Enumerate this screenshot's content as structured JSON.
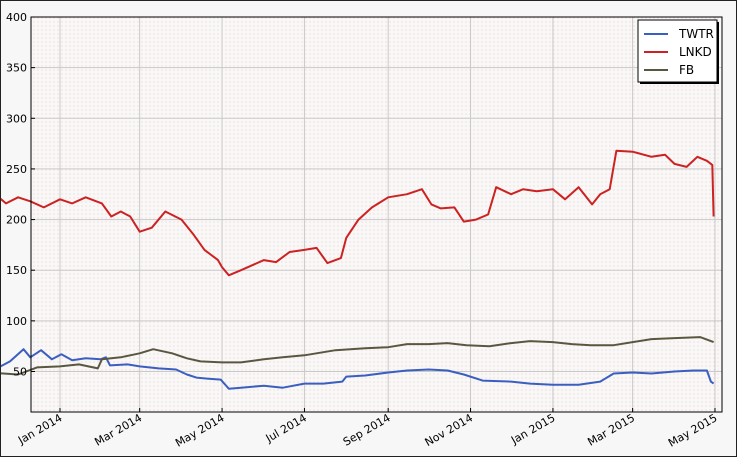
{
  "chart_data": {
    "type": "line",
    "title": "",
    "xlabel": "",
    "ylabel": "",
    "ylim": [
      10,
      400
    ],
    "xlim": [
      "2013-12-01",
      "2015-05-01"
    ],
    "yticks": [
      50,
      100,
      150,
      200,
      250,
      300,
      350,
      400
    ],
    "xticks": [
      {
        "date": "2014-01-01",
        "label": "Jan 2014"
      },
      {
        "date": "2014-03-01",
        "label": "Mar 2014"
      },
      {
        "date": "2014-05-01",
        "label": "May 2014"
      },
      {
        "date": "2014-07-01",
        "label": "Jul 2014"
      },
      {
        "date": "2014-09-01",
        "label": "Sep 2014"
      },
      {
        "date": "2014-11-01",
        "label": "Nov 2014"
      },
      {
        "date": "2015-01-01",
        "label": "Jan 2015"
      },
      {
        "date": "2015-03-01",
        "label": "Mar 2015"
      },
      {
        "date": "2015-05-01",
        "label": "May 2015"
      }
    ],
    "grid": true,
    "legend_position": "top-right",
    "series": [
      {
        "name": "TWTR",
        "color": "#3b5fc0",
        "points": [
          [
            "2013-11-07",
            58
          ],
          [
            "2013-11-15",
            53
          ],
          [
            "2013-11-25",
            60
          ],
          [
            "2013-12-05",
            72
          ],
          [
            "2013-12-10",
            64
          ],
          [
            "2013-12-18",
            71
          ],
          [
            "2013-12-26",
            62
          ],
          [
            "2014-01-02",
            67
          ],
          [
            "2014-01-10",
            61
          ],
          [
            "2014-01-20",
            63
          ],
          [
            "2014-01-31",
            62
          ],
          [
            "2014-02-04",
            64
          ],
          [
            "2014-02-07",
            56
          ],
          [
            "2014-02-20",
            57
          ],
          [
            "2014-03-01",
            55
          ],
          [
            "2014-03-15",
            53
          ],
          [
            "2014-03-28",
            52
          ],
          [
            "2014-04-05",
            47
          ],
          [
            "2014-04-12",
            44
          ],
          [
            "2014-04-20",
            43
          ],
          [
            "2014-04-30",
            42
          ],
          [
            "2014-05-06",
            33
          ],
          [
            "2014-05-15",
            34
          ],
          [
            "2014-06-01",
            36
          ],
          [
            "2014-06-15",
            34
          ],
          [
            "2014-07-01",
            38
          ],
          [
            "2014-07-15",
            38
          ],
          [
            "2014-07-29",
            40
          ],
          [
            "2014-08-01",
            45
          ],
          [
            "2014-08-15",
            46
          ],
          [
            "2014-09-01",
            49
          ],
          [
            "2014-09-15",
            51
          ],
          [
            "2014-10-01",
            52
          ],
          [
            "2014-10-15",
            51
          ],
          [
            "2014-10-27",
            47
          ],
          [
            "2014-11-10",
            41
          ],
          [
            "2014-12-01",
            40
          ],
          [
            "2014-12-15",
            38
          ],
          [
            "2015-01-01",
            37
          ],
          [
            "2015-01-20",
            37
          ],
          [
            "2015-02-05",
            40
          ],
          [
            "2015-02-15",
            48
          ],
          [
            "2015-03-01",
            49
          ],
          [
            "2015-03-15",
            48
          ],
          [
            "2015-04-01",
            50
          ],
          [
            "2015-04-15",
            51
          ],
          [
            "2015-04-25",
            51
          ],
          [
            "2015-04-28",
            40
          ],
          [
            "2015-04-30",
            38
          ]
        ]
      },
      {
        "name": "LNKD",
        "color": "#cc2222",
        "points": [
          [
            "2013-11-07",
            229
          ],
          [
            "2013-11-15",
            224
          ],
          [
            "2013-11-22",
            216
          ],
          [
            "2013-12-01",
            222
          ],
          [
            "2013-12-10",
            218
          ],
          [
            "2013-12-20",
            212
          ],
          [
            "2014-01-01",
            220
          ],
          [
            "2014-01-10",
            216
          ],
          [
            "2014-01-20",
            222
          ],
          [
            "2014-02-01",
            216
          ],
          [
            "2014-02-08",
            203
          ],
          [
            "2014-02-15",
            208
          ],
          [
            "2014-02-22",
            203
          ],
          [
            "2014-03-01",
            188
          ],
          [
            "2014-03-10",
            192
          ],
          [
            "2014-03-20",
            208
          ],
          [
            "2014-04-01",
            200
          ],
          [
            "2014-04-10",
            185
          ],
          [
            "2014-04-18",
            170
          ],
          [
            "2014-04-28",
            160
          ],
          [
            "2014-05-01",
            153
          ],
          [
            "2014-05-06",
            145
          ],
          [
            "2014-05-15",
            150
          ],
          [
            "2014-06-01",
            160
          ],
          [
            "2014-06-10",
            158
          ],
          [
            "2014-06-20",
            168
          ],
          [
            "2014-07-01",
            170
          ],
          [
            "2014-07-10",
            172
          ],
          [
            "2014-07-18",
            157
          ],
          [
            "2014-07-28",
            162
          ],
          [
            "2014-08-01",
            182
          ],
          [
            "2014-08-10",
            200
          ],
          [
            "2014-08-20",
            212
          ],
          [
            "2014-09-01",
            222
          ],
          [
            "2014-09-15",
            225
          ],
          [
            "2014-09-26",
            230
          ],
          [
            "2014-10-03",
            215
          ],
          [
            "2014-10-10",
            211
          ],
          [
            "2014-10-20",
            212
          ],
          [
            "2014-10-27",
            198
          ],
          [
            "2014-11-05",
            200
          ],
          [
            "2014-11-14",
            205
          ],
          [
            "2014-11-20",
            232
          ],
          [
            "2014-12-01",
            225
          ],
          [
            "2014-12-10",
            230
          ],
          [
            "2014-12-20",
            228
          ],
          [
            "2015-01-01",
            230
          ],
          [
            "2015-01-10",
            220
          ],
          [
            "2015-01-20",
            232
          ],
          [
            "2015-01-30",
            215
          ],
          [
            "2015-02-05",
            225
          ],
          [
            "2015-02-12",
            230
          ],
          [
            "2015-02-17",
            268
          ],
          [
            "2015-03-01",
            267
          ],
          [
            "2015-03-15",
            262
          ],
          [
            "2015-03-25",
            264
          ],
          [
            "2015-04-01",
            255
          ],
          [
            "2015-04-10",
            252
          ],
          [
            "2015-04-18",
            262
          ],
          [
            "2015-04-25",
            258
          ],
          [
            "2015-04-29",
            254
          ],
          [
            "2015-04-30",
            203
          ]
        ]
      },
      {
        "name": "FB",
        "color": "#5a5740",
        "points": [
          [
            "2013-11-07",
            49
          ],
          [
            "2013-11-20",
            48
          ],
          [
            "2013-12-01",
            47
          ],
          [
            "2013-12-15",
            54
          ],
          [
            "2014-01-01",
            55
          ],
          [
            "2014-01-15",
            57
          ],
          [
            "2014-01-29",
            53
          ],
          [
            "2014-02-01",
            62
          ],
          [
            "2014-02-15",
            64
          ],
          [
            "2014-03-01",
            68
          ],
          [
            "2014-03-11",
            72
          ],
          [
            "2014-03-25",
            68
          ],
          [
            "2014-04-05",
            63
          ],
          [
            "2014-04-15",
            60
          ],
          [
            "2014-05-01",
            59
          ],
          [
            "2014-05-15",
            59
          ],
          [
            "2014-06-01",
            62
          ],
          [
            "2014-06-15",
            64
          ],
          [
            "2014-07-01",
            66
          ],
          [
            "2014-07-24",
            71
          ],
          [
            "2014-08-15",
            73
          ],
          [
            "2014-09-01",
            74
          ],
          [
            "2014-09-15",
            77
          ],
          [
            "2014-10-01",
            77
          ],
          [
            "2014-10-15",
            78
          ],
          [
            "2014-10-29",
            76
          ],
          [
            "2014-11-15",
            75
          ],
          [
            "2014-12-01",
            78
          ],
          [
            "2014-12-15",
            80
          ],
          [
            "2015-01-01",
            79
          ],
          [
            "2015-01-15",
            77
          ],
          [
            "2015-01-29",
            76
          ],
          [
            "2015-02-15",
            76
          ],
          [
            "2015-03-01",
            79
          ],
          [
            "2015-03-15",
            82
          ],
          [
            "2015-04-01",
            83
          ],
          [
            "2015-04-20",
            84
          ],
          [
            "2015-04-30",
            79
          ]
        ]
      }
    ]
  }
}
